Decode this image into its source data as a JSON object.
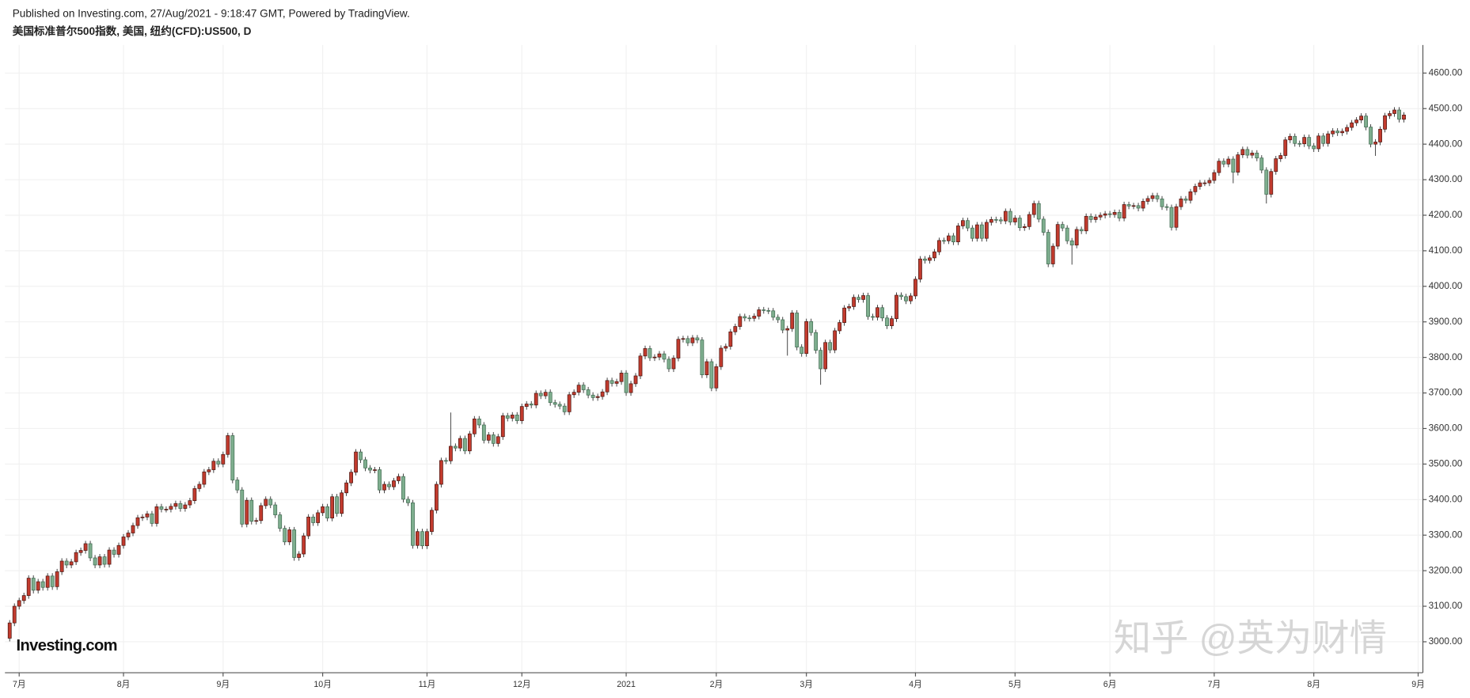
{
  "chart_data": {
    "type": "candlestick",
    "source": "Published on Investing.com, 27/Aug/2021 - 9:18:47 GMT, Powered by TradingView.",
    "title": "美国标准普尔500指数, 美国, 纽约(CFD):US500, D",
    "logo": "Investing.com",
    "watermark": "知乎 @英为财情",
    "up_color": "#c23b2e",
    "down_color": "#7eae8e",
    "grid": true,
    "xlim": [
      -1,
      298
    ],
    "xticks": [
      {
        "value": 2,
        "label": "7月"
      },
      {
        "value": 24,
        "label": "8月"
      },
      {
        "value": 45,
        "label": "9月"
      },
      {
        "value": 66,
        "label": "10月"
      },
      {
        "value": 88,
        "label": "11月"
      },
      {
        "value": 108,
        "label": "12月"
      },
      {
        "value": 130,
        "label": "2021"
      },
      {
        "value": 149,
        "label": "2月"
      },
      {
        "value": 168,
        "label": "3月"
      },
      {
        "value": 191,
        "label": "4月"
      },
      {
        "value": 212,
        "label": "5月"
      },
      {
        "value": 232,
        "label": "6月"
      },
      {
        "value": 254,
        "label": "7月"
      },
      {
        "value": 275,
        "label": "8月"
      },
      {
        "value": 297,
        "label": "9月"
      }
    ],
    "ylim": [
      2913,
      4679
    ],
    "yticks": [
      {
        "value": 3000,
        "label": "3000.00"
      },
      {
        "value": 3100,
        "label": "3100.00"
      },
      {
        "value": 3200,
        "label": "3200.00"
      },
      {
        "value": 3300,
        "label": "3300.00"
      },
      {
        "value": 3400,
        "label": "3400.00"
      },
      {
        "value": 3500,
        "label": "3500.00"
      },
      {
        "value": 3600,
        "label": "3600.00"
      },
      {
        "value": 3700,
        "label": "3700.00"
      },
      {
        "value": 3800,
        "label": "3800.00"
      },
      {
        "value": 3900,
        "label": "3900.00"
      },
      {
        "value": 4000,
        "label": "4000.00"
      },
      {
        "value": 4100,
        "label": "4100.00"
      },
      {
        "value": 4200,
        "label": "4200.00"
      },
      {
        "value": 4300,
        "label": "4300.00"
      },
      {
        "value": 4400,
        "label": "4400.00"
      },
      {
        "value": 4500,
        "label": "4500.00"
      },
      {
        "value": 4600,
        "label": "4600.00"
      }
    ],
    "open": [
      3010,
      3053,
      3100,
      3116,
      3130,
      3179,
      3145,
      3169,
      3153,
      3185,
      3155,
      3197,
      3227,
      3216,
      3225,
      3251,
      3257,
      3276,
      3236,
      3216,
      3239,
      3218,
      3258,
      3246,
      3271,
      3295,
      3306,
      3327,
      3349,
      3351,
      3360,
      3333,
      3380,
      3373,
      3373,
      3381,
      3389,
      3375,
      3385,
      3397,
      3431,
      3443,
      3478,
      3484,
      3508,
      3500,
      3527,
      3580,
      3455,
      3427,
      3331,
      3398,
      3339,
      3341,
      3383,
      3401,
      3385,
      3357,
      3319,
      3281,
      3315,
      3237,
      3247,
      3298,
      3351,
      3335,
      3363,
      3380,
      3348,
      3408,
      3361,
      3419,
      3447,
      3477,
      3534,
      3512,
      3489,
      3483,
      3484,
      3427,
      3443,
      3436,
      3453,
      3465,
      3401,
      3391,
      3271,
      3310,
      3270,
      3310,
      3370,
      3443,
      3510,
      3509,
      3550,
      3545,
      3572,
      3537,
      3585,
      3627,
      3610,
      3567,
      3582,
      3558,
      3577,
      3636,
      3629,
      3638,
      3622,
      3662,
      3669,
      3666,
      3699,
      3692,
      3702,
      3673,
      3668,
      3663,
      3647,
      3695,
      3702,
      3722,
      3709,
      3694,
      3687,
      3690,
      3703,
      3735,
      3727,
      3732,
      3756,
      3701,
      3726,
      3748,
      3804,
      3825,
      3799,
      3801,
      3810,
      3795,
      3768,
      3798,
      3851,
      3853,
      3841,
      3855,
      3849,
      3751,
      3788,
      3714,
      3774,
      3826,
      3831,
      3872,
      3887,
      3915,
      3911,
      3910,
      3916,
      3934,
      3932,
      3931,
      3913,
      3906,
      3877,
      3881,
      3925,
      3829,
      3811,
      3901,
      3870,
      3820,
      3768,
      3842,
      3821,
      3875,
      3898,
      3939,
      3943,
      3969,
      3963,
      3974,
      3915,
      3913,
      3940,
      3911,
      3889,
      3909,
      3975,
      3971,
      3959,
      3973,
      4020,
      4077,
      4073,
      4080,
      4097,
      4129,
      4128,
      4142,
      4125,
      4170,
      4185,
      4164,
      4135,
      4173,
      4135,
      4180,
      4188,
      4187,
      4184,
      4211,
      4181,
      4192,
      4165,
      4168,
      4202,
      4233,
      4189,
      4152,
      4063,
      4113,
      4174,
      4164,
      4128,
      4116,
      4160,
      4156,
      4197,
      4188,
      4195,
      4200,
      4204,
      4202,
      4208,
      4192,
      4230,
      4226,
      4227,
      4220,
      4239,
      4247,
      4255,
      4246,
      4224,
      4222,
      4166,
      4224,
      4246,
      4242,
      4266,
      4281,
      4291,
      4291,
      4298,
      4320,
      4352,
      4344,
      4358,
      4321,
      4370,
      4385,
      4369,
      4375,
      4361,
      4327,
      4259,
      4323,
      4359,
      4368,
      4412,
      4422,
      4402,
      4401,
      4419,
      4395,
      4387,
      4423,
      4402,
      4429,
      4437,
      4432,
      4436,
      4447,
      4460,
      4468,
      4479,
      4448,
      4400,
      4406,
      4442,
      4480,
      4486,
      4496,
      4470
    ],
    "high": [
      3061,
      3108,
      3124,
      3138,
      3187,
      3187,
      3177,
      3177,
      3193,
      3193,
      3205,
      3235,
      3235,
      3233,
      3259,
      3265,
      3284,
      3284,
      3244,
      3247,
      3247,
      3266,
      3266,
      3279,
      3303,
      3314,
      3335,
      3357,
      3359,
      3368,
      3368,
      3388,
      3388,
      3381,
      3389,
      3397,
      3397,
      3393,
      3405,
      3439,
      3451,
      3486,
      3492,
      3516,
      3516,
      3535,
      3588,
      3588,
      3463,
      3435,
      3406,
      3406,
      3349,
      3391,
      3409,
      3409,
      3393,
      3365,
      3327,
      3323,
      3323,
      3255,
      3306,
      3359,
      3359,
      3371,
      3388,
      3388,
      3416,
      3416,
      3427,
      3455,
      3485,
      3542,
      3542,
      3520,
      3497,
      3492,
      3492,
      3451,
      3451,
      3461,
      3473,
      3473,
      3409,
      3399,
      3318,
      3318,
      3318,
      3378,
      3451,
      3518,
      3518,
      3645,
      3558,
      3580,
      3580,
      3593,
      3635,
      3635,
      3618,
      3590,
      3590,
      3585,
      3644,
      3644,
      3646,
      3646,
      3670,
      3677,
      3677,
      3707,
      3707,
      3710,
      3710,
      3681,
      3676,
      3671,
      3703,
      3710,
      3730,
      3730,
      3717,
      3702,
      3698,
      3711,
      3743,
      3743,
      3740,
      3764,
      3764,
      3734,
      3756,
      3812,
      3833,
      3833,
      3809,
      3818,
      3818,
      3803,
      3806,
      3859,
      3861,
      3861,
      3863,
      3863,
      3857,
      3796,
      3796,
      3782,
      3834,
      3839,
      3880,
      3895,
      3923,
      3923,
      3919,
      3924,
      3942,
      3942,
      3940,
      3939,
      3921,
      3914,
      3889,
      3933,
      3933,
      3837,
      3909,
      3909,
      3878,
      3828,
      3850,
      3850,
      3883,
      3906,
      3947,
      3951,
      3977,
      3977,
      3982,
      3982,
      3923,
      3948,
      3948,
      3919,
      3917,
      3983,
      3983,
      3979,
      3981,
      4028,
      4085,
      4085,
      4088,
      4105,
      4137,
      4137,
      4150,
      4150,
      4178,
      4193,
      4193,
      4172,
      4181,
      4181,
      4188,
      4196,
      4196,
      4195,
      4219,
      4219,
      4200,
      4200,
      4176,
      4210,
      4241,
      4241,
      4197,
      4160,
      4121,
      4182,
      4182,
      4172,
      4136,
      4168,
      4168,
      4205,
      4205,
      4203,
      4208,
      4212,
      4212,
      4216,
      4216,
      4238,
      4238,
      4235,
      4235,
      4247,
      4255,
      4263,
      4263,
      4254,
      4232,
      4230,
      4232,
      4254,
      4254,
      4274,
      4289,
      4299,
      4299,
      4306,
      4328,
      4360,
      4360,
      4366,
      4366,
      4378,
      4393,
      4393,
      4383,
      4383,
      4369,
      4335,
      4331,
      4367,
      4376,
      4420,
      4430,
      4430,
      4410,
      4427,
      4427,
      4403,
      4431,
      4431,
      4437,
      4445,
      4445,
      4444,
      4455,
      4468,
      4476,
      4487,
      4487,
      4456,
      4414,
      4450,
      4488,
      4494,
      4504,
      4504,
      4490
    ],
    "low": [
      3001,
      3044,
      3091,
      3107,
      3121,
      3136,
      3136,
      3144,
      3144,
      3146,
      3146,
      3188,
      3207,
      3207,
      3216,
      3242,
      3248,
      3227,
      3207,
      3207,
      3209,
      3209,
      3237,
      3237,
      3262,
      3286,
      3297,
      3318,
      3340,
      3342,
      3324,
      3324,
      3364,
      3364,
      3364,
      3372,
      3366,
      3366,
      3376,
      3388,
      3422,
      3434,
      3469,
      3475,
      3491,
      3491,
      3518,
      3446,
      3418,
      3322,
      3322,
      3330,
      3330,
      3332,
      3374,
      3376,
      3348,
      3310,
      3272,
      3272,
      3228,
      3228,
      3238,
      3289,
      3326,
      3326,
      3354,
      3339,
      3339,
      3352,
      3352,
      3410,
      3438,
      3468,
      3503,
      3480,
      3474,
      3474,
      3418,
      3418,
      3427,
      3427,
      3444,
      3392,
      3382,
      3262,
      3262,
      3261,
      3261,
      3301,
      3361,
      3434,
      3500,
      3500,
      3536,
      3536,
      3528,
      3528,
      3576,
      3601,
      3558,
      3558,
      3549,
      3549,
      3568,
      3620,
      3620,
      3613,
      3613,
      3653,
      3657,
      3657,
      3683,
      3683,
      3664,
      3659,
      3654,
      3638,
      3638,
      3686,
      3693,
      3700,
      3685,
      3678,
      3678,
      3681,
      3694,
      3718,
      3718,
      3723,
      3692,
      3692,
      3717,
      3739,
      3795,
      3790,
      3790,
      3792,
      3786,
      3759,
      3759,
      3789,
      3842,
      3832,
      3832,
      3840,
      3742,
      3742,
      3705,
      3705,
      3765,
      3817,
      3822,
      3863,
      3878,
      3902,
      3901,
      3901,
      3907,
      3923,
      3922,
      3904,
      3897,
      3868,
      3805,
      3872,
      3820,
      3802,
      3802,
      3861,
      3811,
      3723,
      3759,
      3812,
      3812,
      3866,
      3889,
      3930,
      3934,
      3954,
      3954,
      3906,
      3904,
      3904,
      3902,
      3880,
      3880,
      3900,
      3962,
      3950,
      3950,
      3964,
      4011,
      4064,
      4064,
      4071,
      4088,
      4119,
      4119,
      4116,
      4116,
      4161,
      4155,
      4126,
      4126,
      4126,
      4126,
      4171,
      4178,
      4175,
      4175,
      4172,
      4172,
      4156,
      4156,
      4159,
      4193,
      4180,
      4143,
      4054,
      4054,
      4104,
      4155,
      4119,
      4061,
      4107,
      4147,
      4147,
      4179,
      4179,
      4186,
      4191,
      4193,
      4193,
      4183,
      4183,
      4217,
      4217,
      4211,
      4211,
      4230,
      4238,
      4237,
      4215,
      4213,
      4157,
      4157,
      4215,
      4233,
      4233,
      4257,
      4272,
      4282,
      4282,
      4289,
      4311,
      4335,
      4335,
      4290,
      4312,
      4361,
      4360,
      4360,
      4352,
      4318,
      4233,
      4250,
      4314,
      4350,
      4359,
      4403,
      4393,
      4392,
      4392,
      4386,
      4378,
      4378,
      4393,
      4393,
      4420,
      4423,
      4423,
      4427,
      4438,
      4451,
      4459,
      4439,
      4391,
      4367,
      4397,
      4433,
      4471,
      4477,
      4461,
      4461
    ],
    "close": [
      3053,
      3100,
      3116,
      3130,
      3179,
      3145,
      3169,
      3153,
      3185,
      3155,
      3197,
      3227,
      3216,
      3225,
      3251,
      3257,
      3276,
      3236,
      3216,
      3239,
      3218,
      3258,
      3246,
      3271,
      3295,
      3306,
      3327,
      3349,
      3351,
      3360,
      3333,
      3380,
      3373,
      3373,
      3381,
      3389,
      3375,
      3385,
      3397,
      3431,
      3443,
      3478,
      3484,
      3508,
      3500,
      3527,
      3580,
      3455,
      3427,
      3331,
      3398,
      3339,
      3341,
      3383,
      3401,
      3385,
      3357,
      3319,
      3281,
      3315,
      3237,
      3247,
      3298,
      3351,
      3335,
      3363,
      3380,
      3348,
      3408,
      3361,
      3419,
      3447,
      3477,
      3534,
      3512,
      3489,
      3483,
      3484,
      3427,
      3443,
      3436,
      3453,
      3465,
      3401,
      3391,
      3271,
      3310,
      3270,
      3310,
      3370,
      3443,
      3510,
      3509,
      3550,
      3545,
      3572,
      3537,
      3585,
      3627,
      3610,
      3567,
      3582,
      3558,
      3577,
      3636,
      3629,
      3638,
      3622,
      3662,
      3669,
      3666,
      3699,
      3692,
      3702,
      3673,
      3668,
      3663,
      3647,
      3695,
      3702,
      3722,
      3709,
      3694,
      3687,
      3690,
      3703,
      3735,
      3727,
      3732,
      3756,
      3701,
      3726,
      3748,
      3804,
      3825,
      3799,
      3801,
      3810,
      3795,
      3768,
      3798,
      3851,
      3853,
      3841,
      3855,
      3849,
      3751,
      3788,
      3714,
      3774,
      3826,
      3831,
      3872,
      3887,
      3915,
      3911,
      3910,
      3916,
      3934,
      3932,
      3931,
      3913,
      3906,
      3877,
      3881,
      3925,
      3829,
      3811,
      3901,
      3870,
      3820,
      3768,
      3842,
      3821,
      3875,
      3898,
      3939,
      3943,
      3969,
      3963,
      3974,
      3915,
      3913,
      3940,
      3911,
      3889,
      3909,
      3975,
      3971,
      3959,
      3973,
      4020,
      4077,
      4073,
      4080,
      4097,
      4129,
      4128,
      4142,
      4125,
      4170,
      4185,
      4164,
      4135,
      4173,
      4135,
      4180,
      4188,
      4187,
      4184,
      4211,
      4181,
      4192,
      4165,
      4168,
      4202,
      4233,
      4189,
      4152,
      4063,
      4113,
      4174,
      4164,
      4128,
      4116,
      4160,
      4156,
      4197,
      4188,
      4195,
      4200,
      4204,
      4202,
      4208,
      4192,
      4230,
      4226,
      4227,
      4220,
      4239,
      4247,
      4255,
      4246,
      4224,
      4222,
      4166,
      4224,
      4246,
      4242,
      4266,
      4281,
      4291,
      4291,
      4298,
      4320,
      4352,
      4344,
      4358,
      4321,
      4370,
      4385,
      4369,
      4375,
      4361,
      4327,
      4259,
      4323,
      4359,
      4368,
      4412,
      4422,
      4402,
      4401,
      4419,
      4395,
      4387,
      4423,
      4402,
      4429,
      4437,
      4432,
      4436,
      4447,
      4460,
      4468,
      4479,
      4448,
      4400,
      4406,
      4442,
      4480,
      4486,
      4496,
      4470,
      4482
    ]
  }
}
